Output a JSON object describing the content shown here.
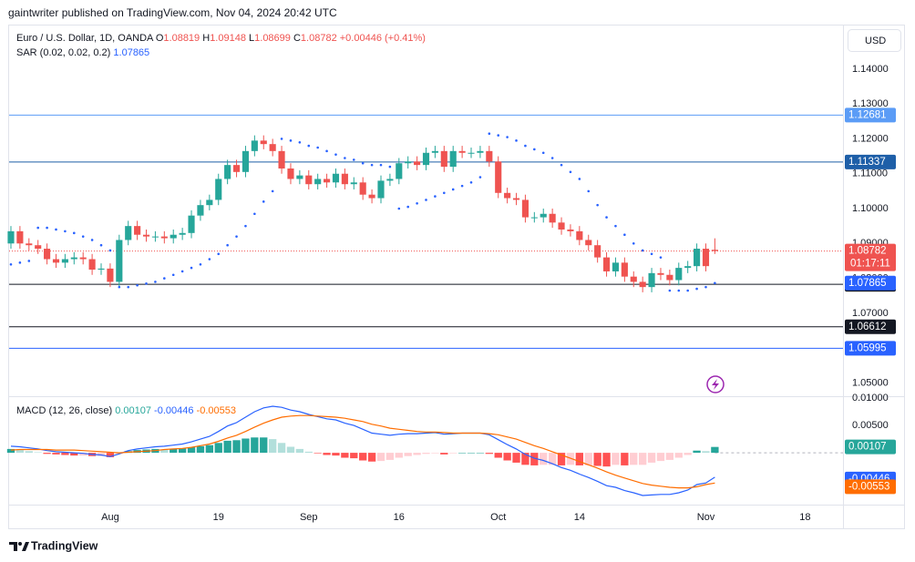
{
  "header": "gaintwriter published on TradingView.com, Nov 04, 2024 20:42 UTC",
  "footer": "TradingView",
  "currency": "USD",
  "chart_data": {
    "type": "candlestick",
    "title": "Euro / U.S. Dollar, 1D, OANDA",
    "ohlc_labels": [
      "O",
      "H",
      "L",
      "C"
    ],
    "change": "+0.00446 (+0.41%)",
    "up_color": "#26a69a",
    "down_color": "#ef5350",
    "candles": [
      [
        1.09,
        1.095,
        1.0885,
        1.0935
      ],
      [
        1.0935,
        1.095,
        1.0885,
        1.09
      ],
      [
        1.09,
        1.0915,
        1.088,
        1.0895
      ],
      [
        1.0895,
        1.091,
        1.087,
        1.0885
      ],
      [
        1.0885,
        1.09,
        1.084,
        1.0855
      ],
      [
        1.0855,
        1.087,
        1.083,
        1.0845
      ],
      [
        1.0845,
        1.087,
        1.083,
        1.0855
      ],
      [
        1.0855,
        1.0875,
        1.084,
        1.086
      ],
      [
        1.086,
        1.0875,
        1.084,
        1.0855
      ],
      [
        1.0855,
        1.087,
        1.081,
        1.0825
      ],
      [
        1.0825,
        1.0843,
        1.081,
        1.0828
      ],
      [
        1.0828,
        1.0843,
        1.0775,
        1.079
      ],
      [
        1.079,
        1.0925,
        1.0775,
        1.091
      ],
      [
        1.091,
        1.0965,
        1.0895,
        1.095
      ],
      [
        1.095,
        1.0965,
        1.091,
        1.0925
      ],
      [
        1.0925,
        1.094,
        1.0905,
        1.092
      ],
      [
        1.092,
        1.0935,
        1.0905,
        1.092
      ],
      [
        1.092,
        1.0935,
        1.09,
        1.0915
      ],
      [
        1.0915,
        1.094,
        1.09,
        1.0925
      ],
      [
        1.0925,
        1.0945,
        1.091,
        1.093
      ],
      [
        1.093,
        1.0995,
        1.0915,
        1.098
      ],
      [
        1.098,
        1.1025,
        1.0965,
        1.101
      ],
      [
        1.101,
        1.104,
        1.0995,
        1.1025
      ],
      [
        1.1025,
        1.11,
        1.101,
        1.1085
      ],
      [
        1.1085,
        1.114,
        1.107,
        1.1125
      ],
      [
        1.1125,
        1.114,
        1.109,
        1.1105
      ],
      [
        1.1105,
        1.118,
        1.109,
        1.1165
      ],
      [
        1.1165,
        1.121,
        1.115,
        1.1195
      ],
      [
        1.1195,
        1.121,
        1.117,
        1.1185
      ],
      [
        1.1185,
        1.12,
        1.115,
        1.1165
      ],
      [
        1.1165,
        1.118,
        1.11,
        1.1115
      ],
      [
        1.1115,
        1.113,
        1.107,
        1.1085
      ],
      [
        1.1085,
        1.111,
        1.107,
        1.1095
      ],
      [
        1.1095,
        1.111,
        1.1055,
        1.107
      ],
      [
        1.107,
        1.11,
        1.1055,
        1.1085
      ],
      [
        1.1085,
        1.11,
        1.106,
        1.1075
      ],
      [
        1.1075,
        1.1115,
        1.106,
        1.11
      ],
      [
        1.11,
        1.1115,
        1.1055,
        1.107
      ],
      [
        1.107,
        1.109,
        1.1055,
        1.1075
      ],
      [
        1.1075,
        1.109,
        1.1025,
        1.104
      ],
      [
        1.104,
        1.1055,
        1.1015,
        1.103
      ],
      [
        1.103,
        1.1095,
        1.1015,
        1.108
      ],
      [
        1.108,
        1.11,
        1.1065,
        1.1085
      ],
      [
        1.1085,
        1.1145,
        1.107,
        1.113
      ],
      [
        1.113,
        1.115,
        1.1115,
        1.1135
      ],
      [
        1.1135,
        1.115,
        1.111,
        1.1125
      ],
      [
        1.1125,
        1.1175,
        1.111,
        1.116
      ],
      [
        1.116,
        1.118,
        1.1145,
        1.1165
      ],
      [
        1.1165,
        1.118,
        1.1105,
        1.112
      ],
      [
        1.112,
        1.118,
        1.1105,
        1.1165
      ],
      [
        1.1165,
        1.118,
        1.1145,
        1.116
      ],
      [
        1.116,
        1.1175,
        1.1145,
        1.116
      ],
      [
        1.116,
        1.118,
        1.1145,
        1.1165
      ],
      [
        1.1165,
        1.118,
        1.112,
        1.1135
      ],
      [
        1.1135,
        1.115,
        1.103,
        1.1045
      ],
      [
        1.1045,
        1.106,
        1.1015,
        1.103
      ],
      [
        1.103,
        1.1045,
        1.101,
        1.1025
      ],
      [
        1.1025,
        1.104,
        1.096,
        1.0975
      ],
      [
        1.0975,
        1.099,
        1.096,
        1.0975
      ],
      [
        1.0975,
        1.1,
        1.096,
        1.0985
      ],
      [
        1.0985,
        1.1,
        1.0945,
        1.096
      ],
      [
        1.096,
        1.0975,
        1.0925,
        1.094
      ],
      [
        1.094,
        1.0955,
        1.092,
        1.0935
      ],
      [
        1.0935,
        1.095,
        1.0895,
        1.091
      ],
      [
        1.091,
        1.0925,
        1.088,
        1.0895
      ],
      [
        1.0895,
        1.091,
        1.0845,
        1.086
      ],
      [
        1.086,
        1.0875,
        1.0805,
        1.082
      ],
      [
        1.082,
        1.086,
        1.0805,
        1.0845
      ],
      [
        1.0845,
        1.086,
        1.079,
        1.0805
      ],
      [
        1.0805,
        1.082,
        1.0775,
        1.079
      ],
      [
        1.079,
        1.0805,
        1.076,
        1.0775
      ],
      [
        1.0775,
        1.083,
        1.076,
        1.0815
      ],
      [
        1.0815,
        1.083,
        1.0795,
        1.081
      ],
      [
        1.081,
        1.0825,
        1.078,
        1.0795
      ],
      [
        1.0795,
        1.0845,
        1.078,
        1.083
      ],
      [
        1.083,
        1.085,
        1.0815,
        1.0835
      ],
      [
        1.0835,
        1.09,
        1.082,
        1.0885
      ],
      [
        1.0885,
        1.09,
        1.082,
        1.0835
      ],
      [
        1.08819,
        1.09148,
        1.08699,
        1.08782
      ]
    ],
    "xlim": [
      -0.2,
      92.2
    ],
    "xticks": [
      {
        "value": 11,
        "label": "Aug"
      },
      {
        "value": 23,
        "label": "19"
      },
      {
        "value": 33,
        "label": "Sep"
      },
      {
        "value": 43,
        "label": "16"
      },
      {
        "value": 54,
        "label": "Oct"
      },
      {
        "value": 63,
        "label": "14"
      },
      {
        "value": 77,
        "label": "Nov"
      },
      {
        "value": 88,
        "label": "18"
      }
    ],
    "ylim": [
      1.0462,
      1.1525
    ],
    "yticks": [
      {
        "value": 1.05,
        "label": "1.05000"
      },
      {
        "value": 1.06,
        "label": "1.06000"
      },
      {
        "value": 1.07,
        "label": "1.07000"
      },
      {
        "value": 1.08,
        "label": "1.08000"
      },
      {
        "value": 1.09,
        "label": "1.09000"
      },
      {
        "value": 1.1,
        "label": "1.10000"
      },
      {
        "value": 1.11,
        "label": "1.11000"
      },
      {
        "value": 1.12,
        "label": "1.12000"
      },
      {
        "value": 1.13,
        "label": "1.13000"
      },
      {
        "value": 1.14,
        "label": "1.14000"
      }
    ],
    "countdown": "01:17:11",
    "levels": [
      {
        "value": 1.12681,
        "color": "#5b9cf6"
      },
      {
        "value": 1.11337,
        "color": "#1e5fa8"
      },
      {
        "value": 1.07829,
        "color": "#131722"
      },
      {
        "value": 1.06612,
        "color": "#131722"
      },
      {
        "value": 1.05995,
        "color": "#2962ff"
      }
    ],
    "sar": {
      "name": "SAR (0.02, 0.02, 0.2)",
      "color": "#2962ff",
      "values": [
        1.084,
        1.0845,
        1.085,
        1.0945,
        1.0945,
        1.094,
        1.0935,
        1.093,
        1.092,
        1.091,
        1.0895,
        1.088,
        1.0775,
        1.0775,
        1.078,
        1.0785,
        1.079,
        1.08,
        1.081,
        1.082,
        1.083,
        1.084,
        1.0855,
        1.087,
        1.0895,
        1.092,
        1.095,
        1.0985,
        1.102,
        1.105,
        1.12,
        1.1195,
        1.119,
        1.118,
        1.1175,
        1.1165,
        1.1155,
        1.1145,
        1.114,
        1.113,
        1.1125,
        1.1125,
        1.112,
        1.1,
        1.1005,
        1.1015,
        1.1025,
        1.1035,
        1.1045,
        1.1055,
        1.1065,
        1.1075,
        1.109,
        1.1215,
        1.121,
        1.1205,
        1.1195,
        1.118,
        1.117,
        1.116,
        1.1145,
        1.1125,
        1.1105,
        1.1085,
        1.105,
        1.101,
        1.0975,
        1.095,
        1.0925,
        1.09,
        1.088,
        1.087,
        1.086,
        1.0765,
        1.0765,
        1.0765,
        1.077,
        1.0775,
        1.07865
      ]
    },
    "macd": {
      "title": "MACD (12, 26, close)",
      "ylim": [
        -0.0093,
        0.01
      ],
      "yticks": [
        {
          "value": 0.005,
          "label": "0.00500"
        },
        {
          "value": 0.01,
          "label": "0.01000"
        }
      ],
      "histogram": {
        "colors": [
          "#26a69a",
          "#b2dfdb",
          "#ff5252",
          "#ffcdd2"
        ],
        "values": [
          0.0007,
          0.0005,
          0.0003,
          0.0001,
          -0.0002,
          -0.0003,
          -0.0004,
          -0.0005,
          -0.0005,
          -0.0006,
          -0.0006,
          -0.0008,
          -0.0002,
          0.0003,
          0.0005,
          0.0006,
          0.0007,
          0.0006,
          0.0007,
          0.0008,
          0.001,
          0.0012,
          0.0014,
          0.0018,
          0.0022,
          0.0023,
          0.0026,
          0.0028,
          0.0028,
          0.0025,
          0.0018,
          0.0011,
          0.0007,
          0.0002,
          -0.0001,
          -0.0004,
          -0.0005,
          -0.0009,
          -0.001,
          -0.0014,
          -0.0016,
          -0.0015,
          -0.0013,
          -0.0009,
          -0.0006,
          -0.0004,
          -0.0002,
          -0.0001,
          -0.0003,
          -0.0001,
          0,
          0,
          0,
          -0.0002,
          -0.0009,
          -0.0014,
          -0.0018,
          -0.0022,
          -0.0023,
          -0.0022,
          -0.0022,
          -0.0023,
          -0.0022,
          -0.0023,
          -0.0023,
          -0.0024,
          -0.0025,
          -0.0022,
          -0.0023,
          -0.0022,
          -0.0022,
          -0.0018,
          -0.0015,
          -0.0013,
          -0.0009,
          -0.0004,
          0.0004,
          0.0003,
          0.00107
        ]
      },
      "macd_line": {
        "color": "#2962ff",
        "values": [
          0.0012,
          0.0011,
          0.0009,
          0.0007,
          0.0004,
          0.0002,
          0.0001,
          0.0,
          -0.0001,
          -0.0003,
          -0.0004,
          -0.0007,
          -0.0002,
          0.0004,
          0.0007,
          0.0009,
          0.0011,
          0.0012,
          0.0014,
          0.0016,
          0.002,
          0.0025,
          0.003,
          0.0039,
          0.0049,
          0.0055,
          0.0065,
          0.0075,
          0.0082,
          0.0085,
          0.0083,
          0.0078,
          0.0075,
          0.007,
          0.0066,
          0.0062,
          0.006,
          0.0054,
          0.005,
          0.0043,
          0.0036,
          0.0034,
          0.0032,
          0.0034,
          0.0035,
          0.0035,
          0.0036,
          0.0037,
          0.0034,
          0.0035,
          0.0036,
          0.0036,
          0.0036,
          0.0033,
          0.0024,
          0.0015,
          0.0007,
          -0.0003,
          -0.001,
          -0.0014,
          -0.002,
          -0.0027,
          -0.0032,
          -0.0039,
          -0.0045,
          -0.0052,
          -0.006,
          -0.0063,
          -0.0069,
          -0.0073,
          -0.0078,
          -0.0077,
          -0.0076,
          -0.0076,
          -0.0073,
          -0.0068,
          -0.0058,
          -0.0055,
          -0.00446
        ]
      },
      "signal_line": {
        "color": "#ff6d00",
        "values": [
          0.0005,
          0.0006,
          0.0006,
          0.0006,
          0.0006,
          0.0005,
          0.0005,
          0.0005,
          0.0004,
          0.0003,
          0.0002,
          0.0001,
          0.0,
          0.0001,
          0.0002,
          0.0003,
          0.0004,
          0.0006,
          0.0007,
          0.0008,
          0.001,
          0.0013,
          0.0016,
          0.0021,
          0.0027,
          0.0032,
          0.0039,
          0.0047,
          0.0054,
          0.006,
          0.0065,
          0.0067,
          0.0068,
          0.0068,
          0.0067,
          0.0066,
          0.0065,
          0.0063,
          0.006,
          0.0057,
          0.0052,
          0.0049,
          0.0045,
          0.0043,
          0.0041,
          0.0039,
          0.0038,
          0.0038,
          0.0037,
          0.0036,
          0.0036,
          0.0036,
          0.0036,
          0.0035,
          0.0033,
          0.0029,
          0.0025,
          0.0019,
          0.0013,
          0.0008,
          0.0002,
          -0.0004,
          -0.001,
          -0.0016,
          -0.0022,
          -0.0028,
          -0.0035,
          -0.0041,
          -0.0046,
          -0.0051,
          -0.0056,
          -0.0059,
          -0.0061,
          -0.0063,
          -0.0064,
          -0.0064,
          -0.0062,
          -0.0058,
          -0.00553
        ]
      }
    }
  }
}
